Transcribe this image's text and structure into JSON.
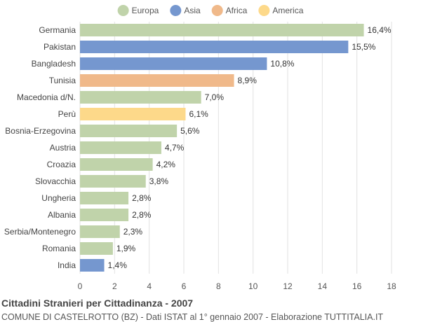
{
  "chart_data": {
    "type": "bar",
    "orientation": "horizontal",
    "title": "Cittadini Stranieri per Cittadinanza - 2007",
    "subtitle": "COMUNE DI CASTELROTTO (BZ) - Dati ISTAT al 1° gennaio 2007 - Elaborazione TUTTITALIA.IT",
    "xlim": [
      0,
      18
    ],
    "xticks": [
      0,
      2,
      4,
      6,
      8,
      10,
      12,
      14,
      16,
      18
    ],
    "grid": true,
    "legend_position": "top-center",
    "legend": [
      {
        "name": "Europa",
        "color": "#c0d3aa"
      },
      {
        "name": "Asia",
        "color": "#7597cf"
      },
      {
        "name": "Africa",
        "color": "#f0b98a"
      },
      {
        "name": "America",
        "color": "#fdd98a"
      }
    ],
    "bars": [
      {
        "category": "Germania",
        "value": 16.4,
        "label": "16,4%",
        "group": "Europa"
      },
      {
        "category": "Pakistan",
        "value": 15.5,
        "label": "15,5%",
        "group": "Asia"
      },
      {
        "category": "Bangladesh",
        "value": 10.8,
        "label": "10,8%",
        "group": "Asia"
      },
      {
        "category": "Tunisia",
        "value": 8.9,
        "label": "8,9%",
        "group": "Africa"
      },
      {
        "category": "Macedonia d/N.",
        "value": 7.0,
        "label": "7,0%",
        "group": "Europa"
      },
      {
        "category": "Perù",
        "value": 6.1,
        "label": "6,1%",
        "group": "America"
      },
      {
        "category": "Bosnia-Erzegovina",
        "value": 5.6,
        "label": "5,6%",
        "group": "Europa"
      },
      {
        "category": "Austria",
        "value": 4.7,
        "label": "4,7%",
        "group": "Europa"
      },
      {
        "category": "Croazia",
        "value": 4.2,
        "label": "4,2%",
        "group": "Europa"
      },
      {
        "category": "Slovacchia",
        "value": 3.8,
        "label": "3,8%",
        "group": "Europa"
      },
      {
        "category": "Ungheria",
        "value": 2.8,
        "label": "2,8%",
        "group": "Europa"
      },
      {
        "category": "Albania",
        "value": 2.8,
        "label": "2,8%",
        "group": "Europa"
      },
      {
        "category": "Serbia/Montenegro",
        "value": 2.3,
        "label": "2,3%",
        "group": "Europa"
      },
      {
        "category": "Romania",
        "value": 1.9,
        "label": "1,9%",
        "group": "Europa"
      },
      {
        "category": "India",
        "value": 1.4,
        "label": "1,4%",
        "group": "Asia"
      }
    ]
  }
}
